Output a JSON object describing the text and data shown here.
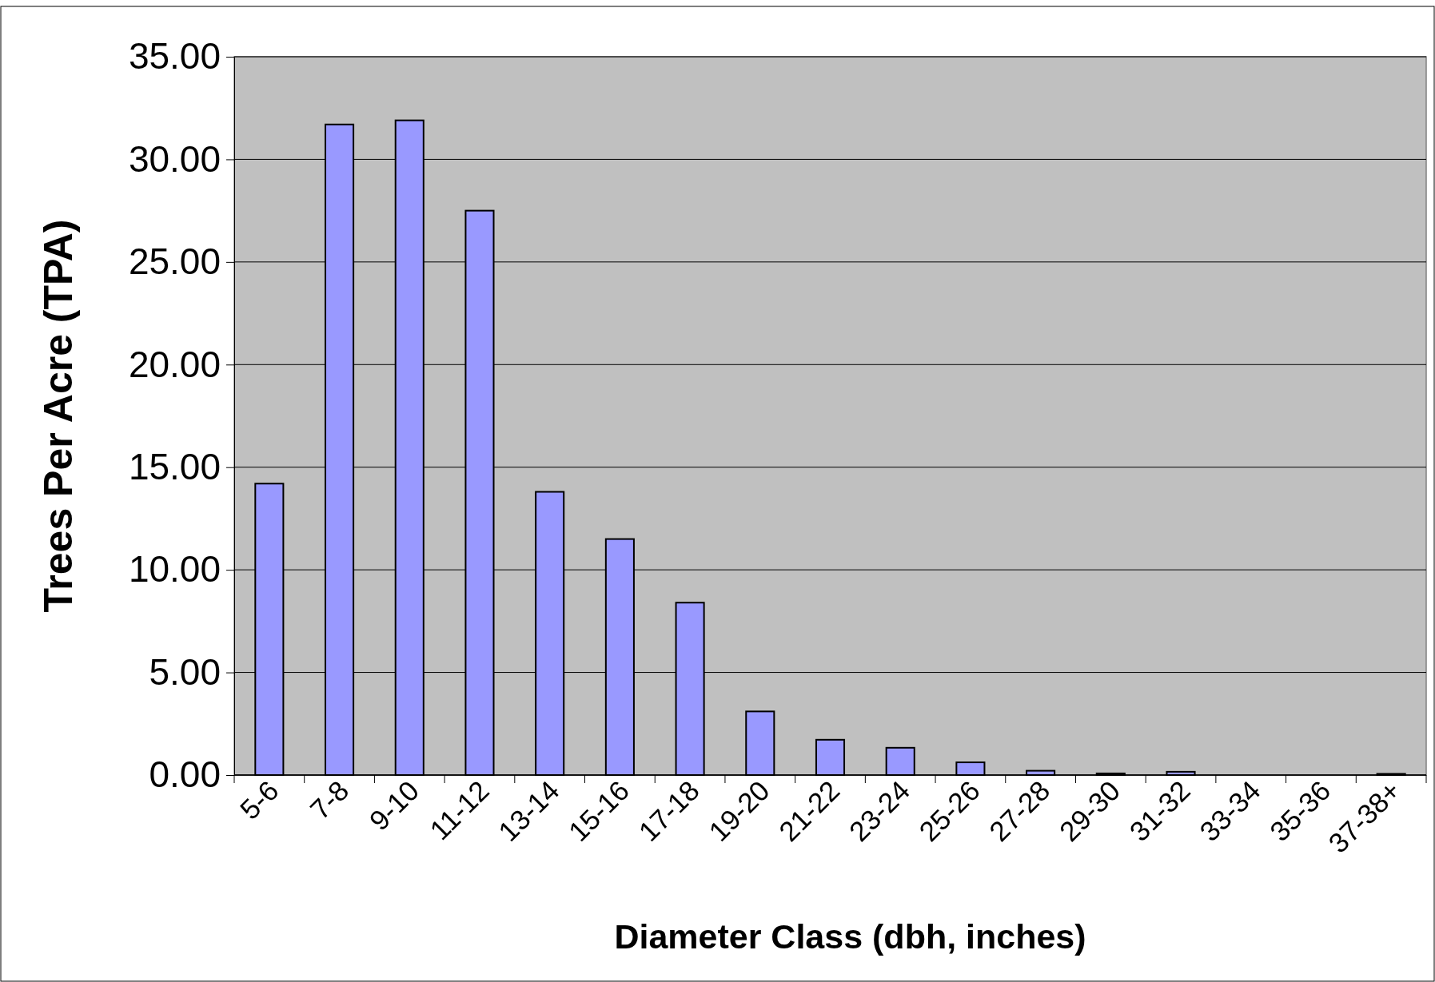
{
  "chart_data": {
    "type": "bar",
    "xlabel": "Diameter Class (dbh, inches)",
    "ylabel": "Trees Per Acre (TPA)",
    "categories": [
      "5-6",
      "7-8",
      "9-10",
      "11-12",
      "13-14",
      "15-16",
      "17-18",
      "19-20",
      "21-22",
      "23-24",
      "25-26",
      "27-28",
      "29-30",
      "31-32",
      "33-34",
      "35-36",
      "37-38+"
    ],
    "values": [
      14.2,
      31.7,
      31.9,
      27.5,
      13.8,
      11.5,
      8.4,
      3.1,
      1.72,
      1.33,
      0.62,
      0.21,
      0.08,
      0.16,
      0,
      0,
      0.06
    ],
    "color": "#9999ff",
    "ylim": [
      0,
      35
    ],
    "yticks": [
      {
        "value": 0,
        "label": "0.00"
      },
      {
        "value": 5,
        "label": "5.00"
      },
      {
        "value": 10,
        "label": "10.00"
      },
      {
        "value": 15,
        "label": "15.00"
      },
      {
        "value": 20,
        "label": "20.00"
      },
      {
        "value": 25,
        "label": "25.00"
      },
      {
        "value": 30,
        "label": "30.00"
      },
      {
        "value": 35,
        "label": "35.00"
      }
    ],
    "grid": "y"
  }
}
